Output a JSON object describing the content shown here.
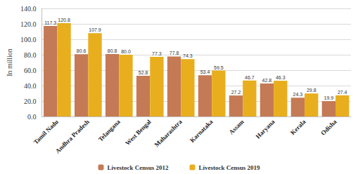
{
  "chart_data": {
    "type": "bar",
    "y_label": "In million",
    "categories": [
      "Tamil Nadu",
      "Andhra Pradesh",
      "Telangana",
      "West Bengal",
      "Maharashtra",
      "Karnataka",
      "Assam",
      "Haryana",
      "Kerala",
      "Odisha"
    ],
    "series": [
      {
        "name": "Livestock Census 2012",
        "color": "#C47A55",
        "values": [
          117.3,
          80.6,
          80.8,
          52.8,
          77.8,
          53.4,
          27.2,
          42.8,
          24.3,
          19.9
        ],
        "value_labels": [
          "117.3",
          "80.6",
          "80.8",
          "52.8",
          "77.8",
          "53.4",
          "27.2",
          "42.8",
          "24.3",
          "19.9"
        ]
      },
      {
        "name": "Livestock Census 2019",
        "color": "#E8AE1E",
        "values": [
          120.8,
          107.9,
          80.0,
          77.3,
          74.3,
          59.5,
          46.7,
          46.3,
          29.8,
          27.4
        ],
        "value_labels": [
          "120.8",
          "107.9",
          "80.0",
          "77.3",
          "74.3",
          "59.5",
          "46.7",
          "46.3",
          "29.8",
          "27.4"
        ]
      }
    ],
    "ylim": [
      0,
      140
    ],
    "yticks": [
      {
        "value": 0,
        "label": "0.0"
      },
      {
        "value": 20,
        "label": "20.0"
      },
      {
        "value": 40,
        "label": "40.0"
      },
      {
        "value": 60,
        "label": "60.0"
      },
      {
        "value": 80,
        "label": "80.0"
      },
      {
        "value": 100,
        "label": "100.0"
      },
      {
        "value": 120,
        "label": "120.0"
      },
      {
        "value": 140,
        "label": "140.0"
      }
    ],
    "grid": true,
    "legend": "bottom",
    "data_labels": true
  }
}
